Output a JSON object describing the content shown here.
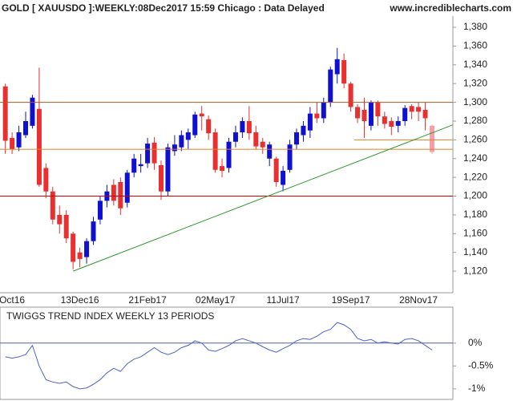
{
  "chart_data": [
    {
      "type": "candlestick",
      "title": "GOLD [ XAUUSDO ]:WEEKLY:08Dec2017 15:59 Chicago : Data Delayed",
      "source": "www.incrediblecharts.com",
      "categories": [
        null,
        "Oct16",
        null,
        null,
        null,
        null,
        null,
        null,
        null,
        null,
        null,
        "13Dec16",
        null,
        null,
        null,
        null,
        null,
        null,
        null,
        null,
        null,
        "21Feb17",
        null,
        null,
        null,
        null,
        null,
        null,
        null,
        null,
        null,
        "02May17",
        null,
        null,
        null,
        null,
        null,
        null,
        null,
        null,
        null,
        "11Jul17",
        null,
        null,
        null,
        null,
        null,
        null,
        null,
        null,
        null,
        "19Sep17",
        null,
        null,
        null,
        null,
        null,
        null,
        null,
        null,
        null,
        "28Nov17",
        null,
        null
      ],
      "open": [
        1317,
        1262,
        1252,
        1265,
        1275,
        1293,
        1230,
        1205,
        1180,
        1180,
        1160,
        1140,
        1135,
        1152,
        1175,
        1195,
        1212,
        1215,
        1193,
        1225,
        1232,
        1235,
        1257,
        1233,
        1205,
        1248,
        1252,
        1260,
        1265,
        1288,
        1282,
        1268,
        1232,
        1230,
        1258,
        1268,
        1280,
        1268,
        1258,
        1240,
        1240,
        1212,
        1228,
        1255,
        1265,
        1270,
        1288,
        1283,
        1300,
        1330,
        1345,
        1320,
        1295,
        1292,
        1275,
        1300,
        1285,
        1280,
        1275,
        1280,
        1296,
        1295,
        1292,
        1275
      ],
      "high": [
        1320,
        1268,
        1275,
        1290,
        1308,
        1337,
        1235,
        1210,
        1190,
        1185,
        1162,
        1145,
        1155,
        1178,
        1200,
        1212,
        1218,
        1220,
        1228,
        1245,
        1245,
        1262,
        1263,
        1238,
        1256,
        1265,
        1270,
        1272,
        1290,
        1296,
        1286,
        1272,
        1240,
        1262,
        1275,
        1284,
        1296,
        1275,
        1262,
        1258,
        1242,
        1232,
        1260,
        1272,
        1280,
        1295,
        1300,
        1305,
        1338,
        1358,
        1352,
        1322,
        1298,
        1305,
        1302,
        1302,
        1290,
        1284,
        1285,
        1297,
        1298,
        1300,
        1300,
        1276
      ],
      "low": [
        1245,
        1245,
        1248,
        1262,
        1272,
        1210,
        1198,
        1170,
        1160,
        1150,
        1122,
        1124,
        1128,
        1148,
        1170,
        1188,
        1190,
        1180,
        1188,
        1220,
        1225,
        1230,
        1228,
        1196,
        1200,
        1243,
        1248,
        1250,
        1262,
        1270,
        1260,
        1225,
        1220,
        1225,
        1252,
        1262,
        1260,
        1250,
        1245,
        1232,
        1210,
        1205,
        1225,
        1250,
        1258,
        1262,
        1278,
        1278,
        1295,
        1320,
        1315,
        1290,
        1278,
        1262,
        1270,
        1275,
        1272,
        1265,
        1268,
        1275,
        1282,
        1280,
        1270,
        1245
      ],
      "close": [
        1259,
        1250,
        1268,
        1280,
        1305,
        1212,
        1205,
        1175,
        1170,
        1155,
        1130,
        1133,
        1152,
        1173,
        1195,
        1205,
        1195,
        1187,
        1225,
        1240,
        1234,
        1256,
        1235,
        1205,
        1252,
        1255,
        1265,
        1268,
        1287,
        1285,
        1267,
        1228,
        1227,
        1258,
        1268,
        1280,
        1267,
        1253,
        1252,
        1255,
        1215,
        1227,
        1255,
        1268,
        1275,
        1288,
        1283,
        1300,
        1335,
        1346,
        1320,
        1295,
        1283,
        1280,
        1300,
        1285,
        1277,
        1274,
        1280,
        1294,
        1290,
        1290,
        1283,
        1247
      ],
      "up_color": "#1010d0",
      "down_color": "#e83030",
      "current_color": "#f4a0a8",
      "lines": [
        {
          "x": [
            -0.8,
            67.9
          ],
          "y": [
            1300,
            1300
          ],
          "color": "#b05a20"
        },
        {
          "x": [
            -0.8,
            67.9
          ],
          "y": [
            1250,
            1250
          ],
          "color": "#e08020"
        },
        {
          "x": [
            51.5,
            67.9
          ],
          "y": [
            1260,
            1260
          ],
          "color": "#e08020"
        },
        {
          "x": [
            -0.8,
            67.9
          ],
          "y": [
            1200,
            1200
          ],
          "color": "#d00000"
        },
        {
          "x": [
            10,
            67.9
          ],
          "y": [
            1120,
            1276
          ],
          "color": "#2a9a2a"
        }
      ],
      "ylim": [
        1097,
        1392
      ],
      "yticks": [
        {
          "value": 1120,
          "label": "1,120"
        },
        {
          "value": 1140,
          "label": "1,140"
        },
        {
          "value": 1160,
          "label": "1,160"
        },
        {
          "value": 1180,
          "label": "1,180"
        },
        {
          "value": 1200,
          "label": "1,200"
        },
        {
          "value": 1220,
          "label": "1,220"
        },
        {
          "value": 1240,
          "label": "1,240"
        },
        {
          "value": 1260,
          "label": "1,260"
        },
        {
          "value": 1280,
          "label": "1,280"
        },
        {
          "value": 1300,
          "label": "1,300"
        },
        {
          "value": 1320,
          "label": "1,320"
        },
        {
          "value": 1340,
          "label": "1,340"
        },
        {
          "value": 1360,
          "label": "1,360"
        },
        {
          "value": 1380,
          "label": "1,380"
        }
      ]
    },
    {
      "type": "line",
      "title": "TWIGGS TREND INDEX WEEKLY 13 PERIODS",
      "values": [
        -0.3,
        -0.33,
        -0.3,
        -0.25,
        -0.05,
        -0.5,
        -0.8,
        -0.85,
        -0.88,
        -0.85,
        -0.95,
        -1.0,
        -0.98,
        -0.9,
        -0.8,
        -0.65,
        -0.55,
        -0.62,
        -0.45,
        -0.35,
        -0.3,
        -0.2,
        -0.1,
        -0.2,
        -0.25,
        -0.2,
        -0.1,
        -0.05,
        0.05,
        0.0,
        -0.15,
        -0.18,
        -0.12,
        -0.05,
        0.05,
        0.1,
        0.05,
        0.0,
        -0.08,
        -0.15,
        -0.2,
        -0.12,
        -0.05,
        0.05,
        0.1,
        0.08,
        0.15,
        0.25,
        0.3,
        0.45,
        0.4,
        0.3,
        0.1,
        0.05,
        0.08,
        0.0,
        0.03,
        0.0,
        -0.02,
        0.08,
        0.1,
        0.05,
        -0.05,
        -0.15
      ],
      "color": "#5060c8",
      "hlines": [
        0
      ],
      "hline_color": "#5060a0",
      "ylim": [
        -1.23,
        0.75
      ],
      "yticks": [
        {
          "value": 0,
          "label": "0%"
        },
        {
          "value": -0.5,
          "label": "-0.5%"
        },
        {
          "value": -1,
          "label": "-1%"
        }
      ]
    }
  ]
}
